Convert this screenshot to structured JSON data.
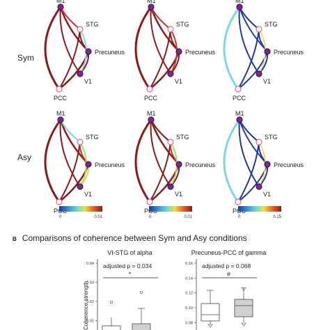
{
  "panel_a": {
    "rows": [
      "Sym",
      "Asy"
    ],
    "node_labels": {
      "m1": "M1",
      "stg": "STG",
      "precuneus": "Precuneus",
      "v1": "V1",
      "pcc": "PCC"
    },
    "colorbars": [
      {
        "min": "0",
        "max": "0.01"
      },
      {
        "min": "0",
        "max": "0.01"
      },
      {
        "min": "0",
        "max": "0.15"
      }
    ]
  },
  "panel_b": {
    "letter": "B",
    "title": "Comparisons of coherence between Sym and Asy conditions",
    "left_plot": {
      "title": "VI-STG of alpha",
      "ylabel": "Coherence strength",
      "yticks": [
        "0.04",
        "0.03",
        "0.02",
        "0.01"
      ],
      "annotation": "adjusted p = 0.034",
      "significance": "*"
    },
    "right_plot": {
      "title": "Precuneus-PCC of gamma",
      "yticks": [
        "0.16",
        "0.14",
        "0.12",
        "0.10",
        "0.08"
      ],
      "annotation": "adjusted p = 0.068",
      "significance": "#"
    }
  },
  "colors": {
    "dark_red": "#8b1a1a",
    "red": "#c0392b",
    "blue": "#1f3a9e",
    "cyan": "#7fd6e8",
    "yellow": "#e8d84a",
    "green": "#a8d86a",
    "node_purple": "#7a2a8a"
  }
}
